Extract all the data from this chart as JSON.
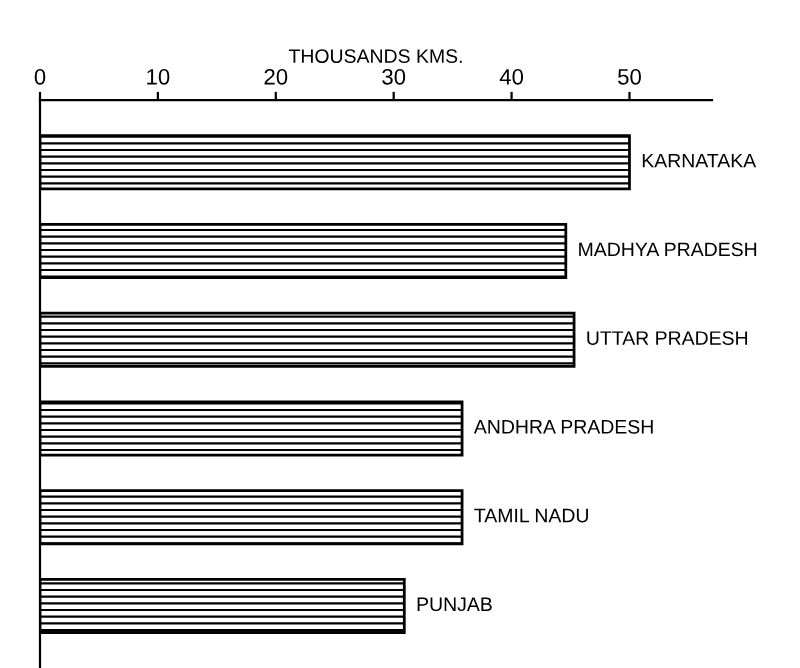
{
  "chart_data": {
    "type": "bar",
    "orientation": "horizontal",
    "xlabel": "THOUSANDS KMS.",
    "categories": [
      "KARNATAKA",
      "MADHYA PRADESH",
      "UTTAR PRADESH",
      "ANDHRA PRADESH",
      "TAMIL NADU",
      "PUNJAB"
    ],
    "values": [
      50,
      44.6,
      45.3,
      35.8,
      35.8,
      30.9
    ],
    "color": "#000000",
    "xlim": [
      0,
      57
    ],
    "xticks": [
      0,
      10,
      20,
      30,
      40,
      50
    ],
    "grid": false
  }
}
